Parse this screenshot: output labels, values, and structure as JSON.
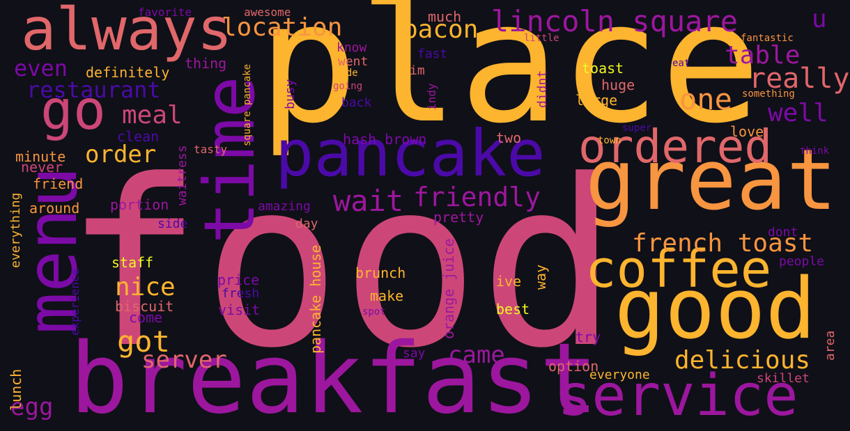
{
  "palette": {
    "background": "#101018",
    "dark_blue": "#3a0fa0",
    "blue": "#4b0aa8",
    "purple": "#7c0aa6",
    "magenta": "#9c179e",
    "pink": "#cc4778",
    "salmon": "#e0676a",
    "orange": "#f89540",
    "gold": "#fdb42f",
    "yellow": "#f0f921"
  },
  "words": [
    {
      "text": "food",
      "color": "#cc4778"
    },
    {
      "text": "place",
      "color": "#fdb42f"
    },
    {
      "text": "breakfast",
      "color": "#9c179e"
    },
    {
      "text": "pancake",
      "color": "#4b0aa8"
    },
    {
      "text": "great",
      "color": "#f89540"
    },
    {
      "text": "good",
      "color": "#fdb42f"
    },
    {
      "text": "service",
      "color": "#9c179e"
    },
    {
      "text": "always",
      "color": "#e0676a"
    },
    {
      "text": "time",
      "color": "#7c0aa6"
    },
    {
      "text": "menu",
      "color": "#7c0aa6"
    },
    {
      "text": "go",
      "color": "#cc4778"
    },
    {
      "text": "ordered",
      "color": "#e0676a"
    },
    {
      "text": "coffee",
      "color": "#fdb42f"
    },
    {
      "text": "lincoln square",
      "color": "#9c179e"
    },
    {
      "text": "location",
      "color": "#f89540"
    },
    {
      "text": "bacon",
      "color": "#fdb42f"
    },
    {
      "text": "u",
      "color": "#7c0aa6"
    },
    {
      "text": "table",
      "color": "#9c179e"
    },
    {
      "text": "really",
      "color": "#e0676a"
    },
    {
      "text": "one",
      "color": "#f89540"
    },
    {
      "text": "well",
      "color": "#7c0aa6"
    },
    {
      "text": "restaurant",
      "color": "#4b0aa8"
    },
    {
      "text": "even",
      "color": "#7c0aa6"
    },
    {
      "text": "meal",
      "color": "#cc4778"
    },
    {
      "text": "order",
      "color": "#fdb42f"
    },
    {
      "text": "wait",
      "color": "#9c179e"
    },
    {
      "text": "friendly",
      "color": "#9c179e"
    },
    {
      "text": "french toast",
      "color": "#f89540"
    },
    {
      "text": "nice",
      "color": "#fdb42f"
    },
    {
      "text": "got",
      "color": "#fdb42f"
    },
    {
      "text": "server",
      "color": "#e0676a"
    },
    {
      "text": "delicious",
      "color": "#fdb42f"
    },
    {
      "text": "came",
      "color": "#9c179e"
    },
    {
      "text": "egg",
      "color": "#9c179e"
    },
    {
      "text": "definitely",
      "color": "#fdb42f"
    },
    {
      "text": "thing",
      "color": "#9c179e"
    },
    {
      "text": "know",
      "color": "#9c179e"
    },
    {
      "text": "went",
      "color": "#e0676a"
    },
    {
      "text": "made",
      "color": "#fdb42f"
    },
    {
      "text": "going",
      "color": "#cc4778"
    },
    {
      "text": "back",
      "color": "#4b0aa8"
    },
    {
      "text": "much",
      "color": "#e0676a"
    },
    {
      "text": "fast",
      "color": "#4b0aa8"
    },
    {
      "text": "im",
      "color": "#e0676a"
    },
    {
      "text": "little",
      "color": "#cc4778"
    },
    {
      "text": "toast",
      "color": "#f0f921"
    },
    {
      "text": "huge",
      "color": "#e0676a"
    },
    {
      "text": "large",
      "color": "#fdb42f"
    },
    {
      "text": "eat",
      "color": "#4b0aa8"
    },
    {
      "text": "fantastic",
      "color": "#f89540"
    },
    {
      "text": "something",
      "color": "#f89540"
    },
    {
      "text": "favorite",
      "color": "#7c0aa6"
    },
    {
      "text": "awesome",
      "color": "#e0676a"
    },
    {
      "text": "clean",
      "color": "#4b0aa8"
    },
    {
      "text": "tasty",
      "color": "#e0676a"
    },
    {
      "text": "minute",
      "color": "#f89540"
    },
    {
      "text": "never",
      "color": "#cc4778"
    },
    {
      "text": "friend",
      "color": "#f89540"
    },
    {
      "text": "around",
      "color": "#f89540"
    },
    {
      "text": "portion",
      "color": "#9c179e"
    },
    {
      "text": "amazing",
      "color": "#7c0aa6"
    },
    {
      "text": "pretty",
      "color": "#9c179e"
    },
    {
      "text": "day",
      "color": "#e0676a"
    },
    {
      "text": "side",
      "color": "#4b0aa8"
    },
    {
      "text": "hash brown",
      "color": "#7c0aa6"
    },
    {
      "text": "two",
      "color": "#e0676a"
    },
    {
      "text": "love",
      "color": "#f89540"
    },
    {
      "text": "super",
      "color": "#4b0aa8"
    },
    {
      "text": "town",
      "color": "#fdb42f"
    },
    {
      "text": "think",
      "color": "#7c0aa6"
    },
    {
      "text": "dont",
      "color": "#7c0aa6"
    },
    {
      "text": "people",
      "color": "#7c0aa6"
    },
    {
      "text": "staff",
      "color": "#f0f921"
    },
    {
      "text": "price",
      "color": "#7c0aa6"
    },
    {
      "text": "fresh",
      "color": "#4b0aa8"
    },
    {
      "text": "visit",
      "color": "#7c0aa6"
    },
    {
      "text": "biscuit",
      "color": "#e0676a"
    },
    {
      "text": "come",
      "color": "#7c0aa6"
    },
    {
      "text": "brunch",
      "color": "#fdb42f"
    },
    {
      "text": "make",
      "color": "#fdb42f"
    },
    {
      "text": "spot",
      "color": "#7c0aa6"
    },
    {
      "text": "ive",
      "color": "#fdb42f"
    },
    {
      "text": "best",
      "color": "#f0f921"
    },
    {
      "text": "try",
      "color": "#7c0aa6"
    },
    {
      "text": "say",
      "color": "#7c0aa6"
    },
    {
      "text": "option",
      "color": "#e0676a"
    },
    {
      "text": "everyone",
      "color": "#fdb42f"
    },
    {
      "text": "skillet",
      "color": "#cc4778"
    },
    {
      "text": "lunch",
      "color": "#fdb42f"
    },
    {
      "text": "square pancake",
      "color": "#fdb42f"
    },
    {
      "text": "waitress",
      "color": "#9c179e"
    },
    {
      "text": "busy",
      "color": "#7c0aa6"
    },
    {
      "text": "indy",
      "color": "#9c179e"
    },
    {
      "text": "didnt",
      "color": "#9c179e"
    },
    {
      "text": "everything",
      "color": "#fdb42f"
    },
    {
      "text": "experience",
      "color": "#4b0aa8"
    },
    {
      "text": "pancake house",
      "color": "#fdb42f"
    },
    {
      "text": "orange juice",
      "color": "#9c179e"
    },
    {
      "text": "way",
      "color": "#fdb42f"
    },
    {
      "text": "area",
      "color": "#e0676a"
    }
  ]
}
